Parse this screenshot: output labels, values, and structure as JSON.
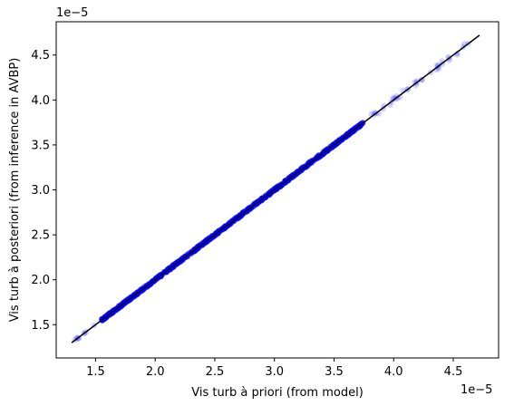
{
  "chart_data": {
    "type": "scatter",
    "xlabel": "Vis turb à priori (from model)",
    "ylabel": "Vis turb à posteriori (from inference in AVBP)",
    "x_offset_label": "1e−5",
    "y_offset_label": "1e−5",
    "xlim": [
      1.17,
      4.88
    ],
    "ylim": [
      1.13,
      4.87
    ],
    "x_ticks": [
      1.5,
      2.0,
      2.5,
      3.0,
      3.5,
      4.0,
      4.5
    ],
    "x_tick_labels": [
      "1.5",
      "2.0",
      "2.5",
      "3.0",
      "3.5",
      "4.0",
      "4.5"
    ],
    "y_ticks": [
      1.5,
      2.0,
      2.5,
      3.0,
      3.5,
      4.0,
      4.5
    ],
    "y_tick_labels": [
      "1.5",
      "2.0",
      "2.5",
      "3.0",
      "3.5",
      "4.0",
      "4.5"
    ],
    "grid": false,
    "series": [
      {
        "kind": "points",
        "color": "#0000ff",
        "x_range": [
          1.3,
          4.72
        ],
        "dense_range": [
          1.55,
          3.75
        ],
        "spread": 0.012
      },
      {
        "kind": "identity-line",
        "color": "#000000",
        "x": [
          1.3,
          4.72
        ],
        "y": [
          1.3,
          4.72
        ]
      }
    ]
  }
}
